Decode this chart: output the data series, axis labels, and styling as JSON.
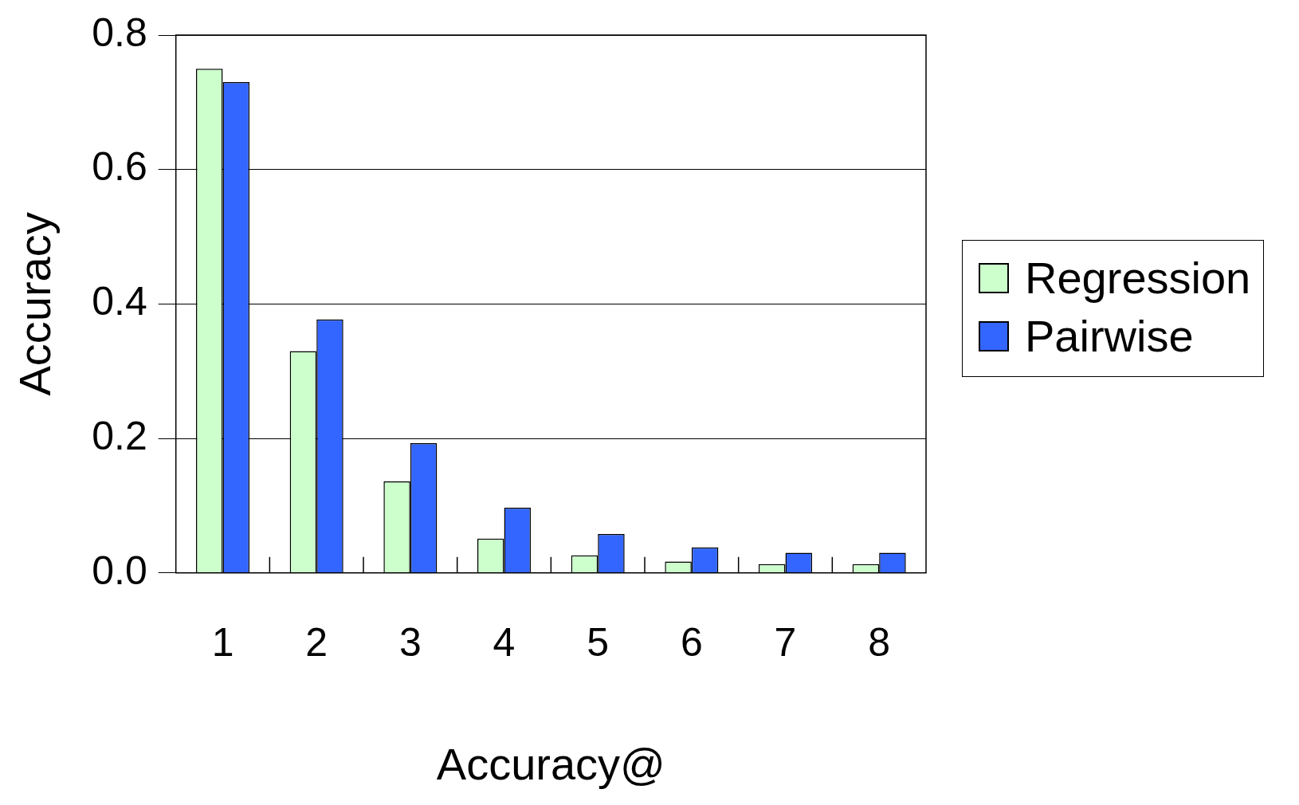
{
  "chart_data": {
    "type": "bar",
    "xlabel": "Accuracy@",
    "ylabel": "Accuracy",
    "categories": [
      "1",
      "2",
      "3",
      "4",
      "5",
      "6",
      "7",
      "8"
    ],
    "series": [
      {
        "name": "Regression",
        "color": "#ccffcc",
        "values": [
          0.75,
          0.33,
          0.136,
          0.051,
          0.026,
          0.017,
          0.013,
          0.013
        ]
      },
      {
        "name": "Pairwise",
        "color": "#3366ff",
        "values": [
          0.73,
          0.377,
          0.193,
          0.097,
          0.058,
          0.038,
          0.03,
          0.03
        ]
      }
    ],
    "ylim": [
      0,
      0.8
    ],
    "yticks": [
      {
        "value": 0,
        "label": "0.0"
      },
      {
        "value": 0.2,
        "label": "0.2"
      },
      {
        "value": 0.4,
        "label": "0.4"
      },
      {
        "value": 0.6,
        "label": "0.6"
      },
      {
        "value": 0.8,
        "label": "0.8"
      }
    ],
    "grid": "y",
    "legend": "right"
  }
}
